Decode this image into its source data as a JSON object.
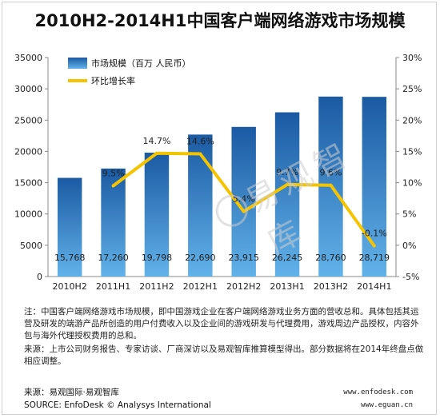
{
  "title": "2010H2-2014H1中国客户端网络游戏市场规模",
  "chart_data": {
    "type": "bar",
    "categories": [
      "2010H2",
      "2011H1",
      "2011H2",
      "2012H1",
      "2012H2",
      "2013H1",
      "2013H2",
      "2014H1"
    ],
    "series": [
      {
        "name": "市场规模（百万 人民币）",
        "type": "bar",
        "axis": "left",
        "values": [
          15768,
          17260,
          19798,
          22690,
          23915,
          26245,
          28760,
          28719
        ],
        "labels": [
          "15,768",
          "17,260",
          "19,798",
          "22,690",
          "23,915",
          "26,245",
          "28,760",
          "28,719"
        ]
      },
      {
        "name": "环比增长率",
        "type": "line",
        "axis": "right",
        "values": [
          null,
          9.5,
          14.7,
          14.6,
          5.4,
          9.7,
          9.6,
          -0.1
        ],
        "labels": [
          "",
          "9.5%",
          "14.7%",
          "14.6%",
          "5.4%",
          "9.7%",
          "9.6%",
          "-0.1%"
        ]
      }
    ],
    "y_left": {
      "min": 0,
      "max": 35000,
      "step": 5000,
      "ticks": [
        "0",
        "5000",
        "10000",
        "15000",
        "20000",
        "25000",
        "30000",
        "35000"
      ]
    },
    "y_right": {
      "min": -5,
      "max": 30,
      "step": 5,
      "ticks": [
        "-5%",
        "0%",
        "5%",
        "10%",
        "15%",
        "20%",
        "25%",
        "30%"
      ]
    },
    "legend_position": "top-left",
    "grid": false,
    "colors": {
      "bar_top": "#1f5fa8",
      "bar_bottom": "#5aa9e6",
      "line": "#f5c400",
      "label": "#222222"
    }
  },
  "watermark": {
    "text": "易观智库"
  },
  "notes": {
    "line1": "注：中国客户端网络游戏市场规模，即中国游戏企业在客户端网络游戏业务方面的营收总和。具体包括其运营及研发的端游产品所创造的用户付费收入以及企业间的游戏研发与代理费用，游戏周边产品授权，内容外包与海外代理授权费用的总和。",
    "line2": "来源：上市公司财务报告、专家访谈、厂商深访以及易观智库推算模型得出。部分数据将在2014年终盘点做相应调整。"
  },
  "source": {
    "cn": "来源：易观国际·易观智库",
    "en": "SOURCE: EnfoDesk © Analysys International"
  },
  "site": {
    "line1": "www.enfodesk.com",
    "line2": "www.eguan.cn"
  }
}
